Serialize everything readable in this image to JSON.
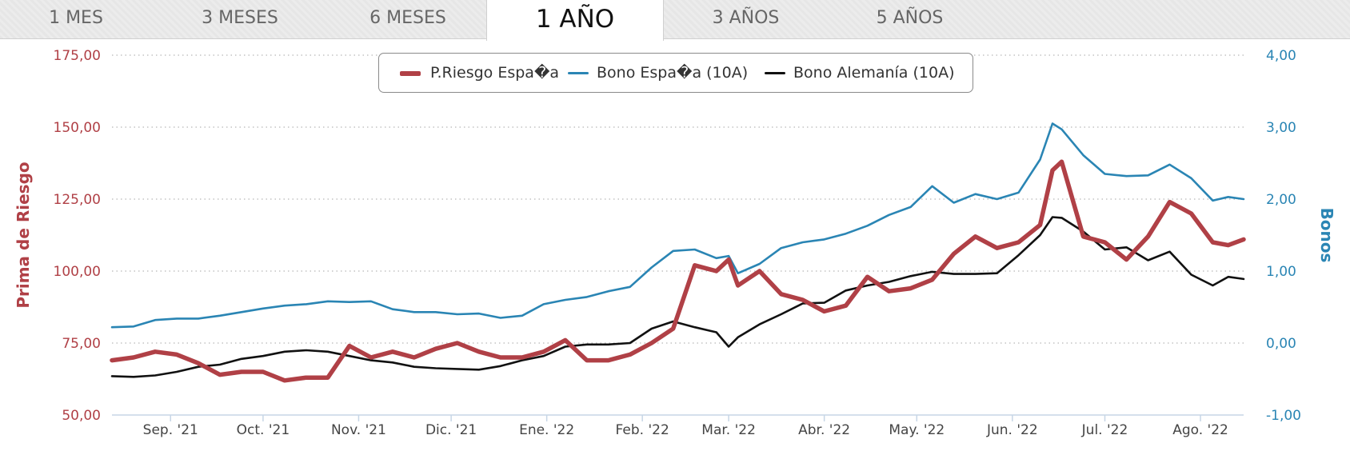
{
  "tabs": [
    {
      "label": "1 MES",
      "active": false
    },
    {
      "label": "3 MESES",
      "active": false
    },
    {
      "label": "6 MESES",
      "active": false
    },
    {
      "label": "1 AÑO",
      "active": true
    },
    {
      "label": "3 AÑOS",
      "active": false
    },
    {
      "label": "5 AÑOS",
      "active": false
    }
  ],
  "colors": {
    "riesgo": "#b04046",
    "bono_es": "#2a85b4",
    "bono_de": "#111111",
    "axis_left": "#b04046",
    "axis_right": "#2a85b4",
    "tick_text": "#444444",
    "grid": "#b8b8b8"
  },
  "chart_data": {
    "type": "line",
    "title": "",
    "x_ticks": [
      "Sep. '21",
      "Oct. '21",
      "Nov. '21",
      "Dic. '21",
      "Ene. '22",
      "Feb. '22",
      "Mar. '22",
      "Abr. '22",
      "May. '22",
      "Jun. '22",
      "Jul. '22",
      "Ago. '22"
    ],
    "y_left": {
      "label": "Prima de Riesgo",
      "ylim": [
        50,
        175
      ],
      "ticks": [
        "50,00",
        "75,00",
        "100,00",
        "125,00",
        "150,00",
        "175,00"
      ]
    },
    "y_right": {
      "label": "Bonos",
      "ylim": [
        -1,
        4
      ],
      "ticks": [
        "-1,00",
        "0,00",
        "1,00",
        "2,00",
        "3,00",
        "4,00"
      ]
    },
    "grid": "horizontal-dotted",
    "legend_position": "top-center",
    "x_range": [
      "2021-08-13",
      "2022-08-15"
    ],
    "series": [
      {
        "name": "P.Riesgo Espa�a",
        "axis": "left",
        "x": [
          "2021-08-13",
          "2021-08-20",
          "2021-08-27",
          "2021-09-03",
          "2021-09-10",
          "2021-09-17",
          "2021-09-24",
          "2021-10-01",
          "2021-10-08",
          "2021-10-15",
          "2021-10-22",
          "2021-10-29",
          "2021-11-05",
          "2021-11-12",
          "2021-11-19",
          "2021-11-26",
          "2021-12-03",
          "2021-12-10",
          "2021-12-17",
          "2021-12-24",
          "2021-12-31",
          "2022-01-07",
          "2022-01-14",
          "2022-01-21",
          "2022-01-28",
          "2022-02-04",
          "2022-02-11",
          "2022-02-18",
          "2022-02-25",
          "2022-03-01",
          "2022-03-04",
          "2022-03-11",
          "2022-03-18",
          "2022-03-25",
          "2022-04-01",
          "2022-04-08",
          "2022-04-15",
          "2022-04-22",
          "2022-04-29",
          "2022-05-06",
          "2022-05-13",
          "2022-05-20",
          "2022-05-27",
          "2022-06-03",
          "2022-06-10",
          "2022-06-14",
          "2022-06-17",
          "2022-06-24",
          "2022-07-01",
          "2022-07-08",
          "2022-07-15",
          "2022-07-22",
          "2022-07-29",
          "2022-08-05",
          "2022-08-10",
          "2022-08-15"
        ],
        "values": [
          69,
          70,
          72,
          71,
          68,
          64,
          65,
          65,
          62,
          63,
          63,
          74,
          70,
          72,
          70,
          73,
          75,
          72,
          70,
          70,
          72,
          76,
          69,
          69,
          71,
          75,
          80,
          102,
          100,
          104,
          95,
          100,
          92,
          90,
          86,
          88,
          98,
          93,
          94,
          97,
          106,
          112,
          108,
          110,
          116,
          135,
          138,
          112,
          110,
          104,
          112,
          124,
          120,
          110,
          109,
          111
        ]
      },
      {
        "name": "Bono Espa�a (10A)",
        "axis": "right",
        "x": [
          "2021-08-13",
          "2021-08-20",
          "2021-08-27",
          "2021-09-03",
          "2021-09-10",
          "2021-09-17",
          "2021-09-24",
          "2021-10-01",
          "2021-10-08",
          "2021-10-15",
          "2021-10-22",
          "2021-10-29",
          "2021-11-05",
          "2021-11-12",
          "2021-11-19",
          "2021-11-26",
          "2021-12-03",
          "2021-12-10",
          "2021-12-17",
          "2021-12-24",
          "2021-12-31",
          "2022-01-07",
          "2022-01-14",
          "2022-01-21",
          "2022-01-28",
          "2022-02-04",
          "2022-02-11",
          "2022-02-18",
          "2022-02-25",
          "2022-03-01",
          "2022-03-04",
          "2022-03-11",
          "2022-03-18",
          "2022-03-25",
          "2022-04-01",
          "2022-04-08",
          "2022-04-15",
          "2022-04-22",
          "2022-04-29",
          "2022-05-06",
          "2022-05-13",
          "2022-05-20",
          "2022-05-27",
          "2022-06-03",
          "2022-06-10",
          "2022-06-14",
          "2022-06-17",
          "2022-06-24",
          "2022-07-01",
          "2022-07-08",
          "2022-07-15",
          "2022-07-22",
          "2022-07-29",
          "2022-08-05",
          "2022-08-10",
          "2022-08-15"
        ],
        "values": [
          0.22,
          0.23,
          0.32,
          0.34,
          0.34,
          0.38,
          0.43,
          0.48,
          0.52,
          0.54,
          0.58,
          0.57,
          0.58,
          0.47,
          0.43,
          0.43,
          0.4,
          0.41,
          0.35,
          0.38,
          0.54,
          0.6,
          0.64,
          0.72,
          0.78,
          1.05,
          1.28,
          1.3,
          1.18,
          1.21,
          0.97,
          1.1,
          1.32,
          1.4,
          1.44,
          1.52,
          1.63,
          1.78,
          1.89,
          2.18,
          1.95,
          2.07,
          2.0,
          2.09,
          2.55,
          3.05,
          2.97,
          2.61,
          2.35,
          2.32,
          2.33,
          2.48,
          2.29,
          1.98,
          2.03,
          2.0
        ]
      },
      {
        "name": "Bono Alemanía (10A)",
        "axis": "right",
        "x": [
          "2021-08-13",
          "2021-08-20",
          "2021-08-27",
          "2021-09-03",
          "2021-09-10",
          "2021-09-17",
          "2021-09-24",
          "2021-10-01",
          "2021-10-08",
          "2021-10-15",
          "2021-10-22",
          "2021-10-29",
          "2021-11-05",
          "2021-11-12",
          "2021-11-19",
          "2021-11-26",
          "2021-12-03",
          "2021-12-10",
          "2021-12-17",
          "2021-12-24",
          "2021-12-31",
          "2022-01-07",
          "2022-01-14",
          "2022-01-21",
          "2022-01-28",
          "2022-02-04",
          "2022-02-11",
          "2022-02-18",
          "2022-02-25",
          "2022-03-01",
          "2022-03-04",
          "2022-03-11",
          "2022-03-18",
          "2022-03-25",
          "2022-04-01",
          "2022-04-08",
          "2022-04-15",
          "2022-04-22",
          "2022-04-29",
          "2022-05-06",
          "2022-05-13",
          "2022-05-20",
          "2022-05-27",
          "2022-06-03",
          "2022-06-10",
          "2022-06-14",
          "2022-06-17",
          "2022-06-24",
          "2022-07-01",
          "2022-07-08",
          "2022-07-15",
          "2022-07-22",
          "2022-07-29",
          "2022-08-05",
          "2022-08-10",
          "2022-08-15"
        ],
        "values": [
          -0.46,
          -0.47,
          -0.45,
          -0.4,
          -0.33,
          -0.3,
          -0.22,
          -0.18,
          -0.12,
          -0.1,
          -0.12,
          -0.18,
          -0.24,
          -0.27,
          -0.33,
          -0.35,
          -0.36,
          -0.37,
          -0.32,
          -0.24,
          -0.18,
          -0.05,
          -0.02,
          -0.02,
          0.0,
          0.2,
          0.3,
          0.22,
          0.15,
          -0.05,
          0.08,
          0.26,
          0.4,
          0.55,
          0.56,
          0.73,
          0.8,
          0.85,
          0.93,
          0.99,
          0.96,
          0.96,
          0.97,
          1.22,
          1.5,
          1.75,
          1.74,
          1.55,
          1.3,
          1.33,
          1.15,
          1.27,
          0.95,
          0.8,
          0.92,
          0.89
        ]
      }
    ]
  }
}
